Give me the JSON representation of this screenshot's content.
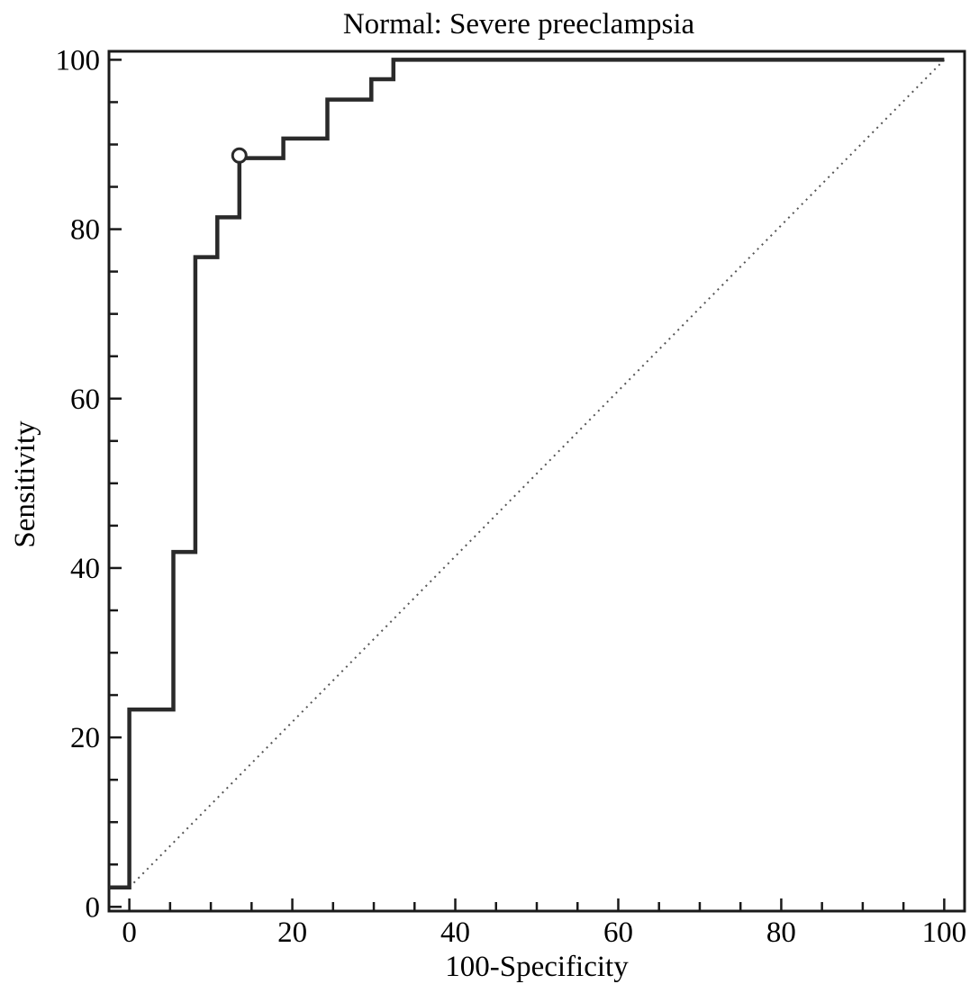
{
  "chart_data": {
    "type": "line",
    "title": "Normal: Severe preeclampsia",
    "xlabel": "100-Specificity",
    "ylabel": "Sensitivity",
    "xlim": [
      -2.5,
      102.5
    ],
    "ylim": [
      -0.5,
      101
    ],
    "x_ticks": [
      0,
      20,
      40,
      60,
      80,
      100
    ],
    "y_ticks": [
      0,
      20,
      40,
      60,
      80,
      100
    ],
    "x_tick_labels": [
      "0",
      "20",
      "40",
      "60",
      "80",
      "100"
    ],
    "y_tick_labels": [
      "0",
      "20",
      "40",
      "60",
      "80",
      "100"
    ],
    "x_minor_step": 5,
    "y_minor_step": 5,
    "grid": false,
    "series": [
      {
        "style": "step",
        "x": [
          -2.5,
          0,
          0,
          5.4,
          5.4,
          8.1,
          8.1,
          10.8,
          10.8,
          13.5,
          13.5,
          18.9,
          18.9,
          24.3,
          24.3,
          29.7,
          29.7,
          32.4,
          32.4,
          100
        ],
        "y": [
          2.3,
          2.3,
          23.3,
          23.3,
          41.9,
          41.9,
          76.7,
          76.7,
          81.4,
          81.4,
          88.4,
          88.4,
          90.7,
          90.7,
          95.3,
          95.3,
          97.7,
          97.7,
          100,
          100
        ]
      },
      {
        "style": "diagonal-reference",
        "x": [
          0,
          100
        ],
        "y": [
          2.3,
          100
        ]
      }
    ],
    "annotations": [
      {
        "type": "optimal-criterion-marker",
        "x": 13.5,
        "y": 88.7
      }
    ],
    "colors": {
      "curve": "#2a2a2a",
      "reference": "#555555",
      "axes": "#1a1a1a"
    }
  }
}
